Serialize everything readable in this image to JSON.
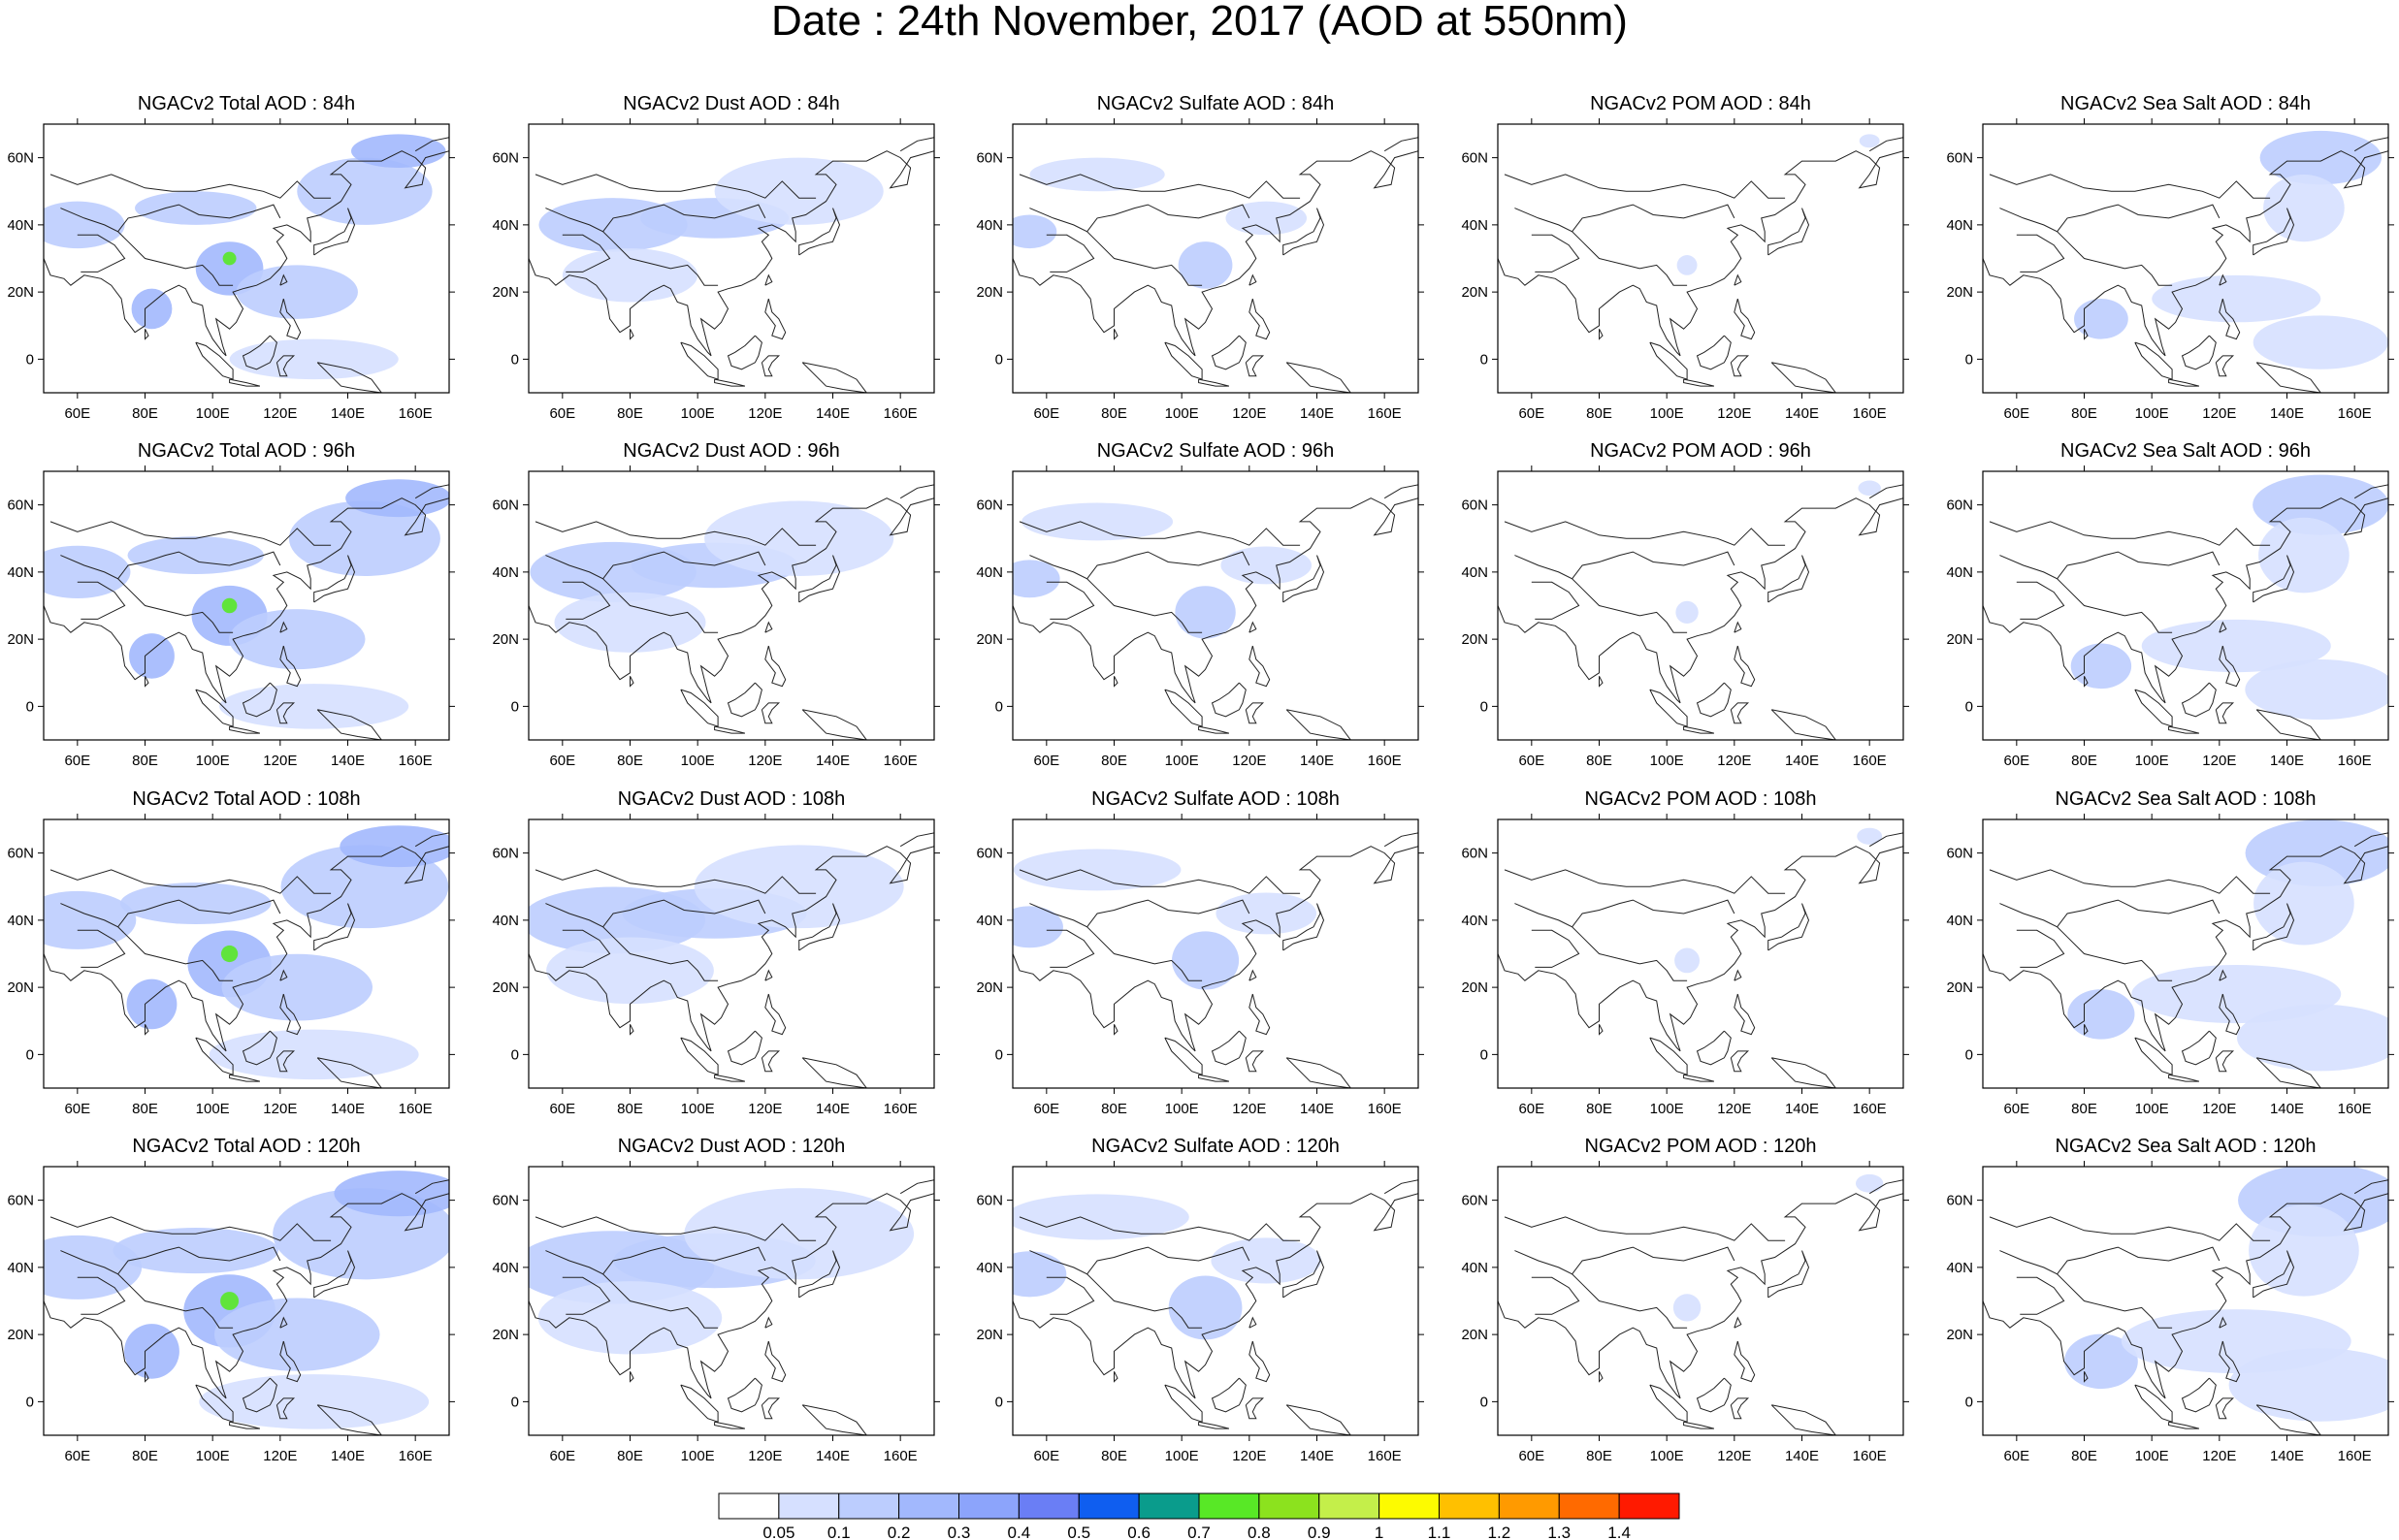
{
  "title": "Date : 24th November, 2017 (AOD at 550nm)",
  "forecast_hours": [
    "84h",
    "96h",
    "108h",
    "120h"
  ],
  "panels": [
    [
      "NGACv2 Total AOD : 84h",
      "NGACv2 Dust AOD : 84h",
      "NGACv2 Sulfate AOD : 84h",
      "NGACv2 POM AOD : 84h",
      "NGACv2 Sea Salt AOD : 84h"
    ],
    [
      "NGACv2 Total AOD : 96h",
      "NGACv2 Dust AOD : 96h",
      "NGACv2 Sulfate AOD : 96h",
      "NGACv2 POM AOD : 96h",
      "NGACv2 Sea Salt AOD : 96h"
    ],
    [
      "NGACv2 Total AOD : 108h",
      "NGACv2 Dust AOD : 108h",
      "NGACv2 Sulfate AOD : 108h",
      "NGACv2 POM AOD : 108h",
      "NGACv2 Sea Salt AOD : 108h"
    ],
    [
      "NGACv2 Total AOD : 120h",
      "NGACv2 Dust AOD : 120h",
      "NGACv2 Sulfate AOD : 120h",
      "NGACv2 POM AOD : 120h",
      "NGACv2 Sea Salt  AOD : 120h"
    ]
  ],
  "map_extent": {
    "lon_min": 50,
    "lon_max": 170,
    "lat_min": -10,
    "lat_max": 70
  },
  "lon_ticks": [
    "60E",
    "80E",
    "100E",
    "120E",
    "140E",
    "160E"
  ],
  "lon_tick_values": [
    60,
    80,
    100,
    120,
    140,
    160
  ],
  "lat_ticks": [
    "60N",
    "40N",
    "20N",
    "0"
  ],
  "lat_tick_values": [
    60,
    40,
    20,
    0
  ],
  "colorbar": {
    "labels": [
      "0.05",
      "0.1",
      "0.2",
      "0.3",
      "0.4",
      "0.5",
      "0.6",
      "0.7",
      "0.8",
      "0.9",
      "1",
      "1.1",
      "1.2",
      "1.3",
      "1.4"
    ],
    "colors": [
      "#ffffff",
      "#d6e0ff",
      "#bccdfe",
      "#a2b8fd",
      "#8ca4fb",
      "#6a7ef5",
      "#0f5ef0",
      "#0a9c8c",
      "#58e826",
      "#8ce21e",
      "#c4ef4a",
      "#fdfb00",
      "#ffc000",
      "#ff9a00",
      "#ff6a00",
      "#ff1a00"
    ]
  },
  "fields": {
    "Total": [
      {
        "lon": 60,
        "lat": 40,
        "rx": 14,
        "ry": 7,
        "level": 2
      },
      {
        "lon": 95,
        "lat": 45,
        "rx": 18,
        "ry": 5,
        "level": 2
      },
      {
        "lon": 145,
        "lat": 50,
        "rx": 20,
        "ry": 10,
        "level": 2
      },
      {
        "lon": 155,
        "lat": 62,
        "rx": 14,
        "ry": 5,
        "level": 3
      },
      {
        "lon": 105,
        "lat": 27,
        "rx": 10,
        "ry": 8,
        "level": 3
      },
      {
        "lon": 82,
        "lat": 15,
        "rx": 6,
        "ry": 6,
        "level": 3
      },
      {
        "lon": 125,
        "lat": 20,
        "rx": 18,
        "ry": 8,
        "level": 2
      },
      {
        "lon": 130,
        "lat": 0,
        "rx": 25,
        "ry": 6,
        "level": 1
      },
      {
        "lon": 105,
        "lat": 30,
        "rx": 2,
        "ry": 2,
        "level": 8
      }
    ],
    "Dust": [
      {
        "lon": 75,
        "lat": 40,
        "rx": 22,
        "ry": 8,
        "level": 2
      },
      {
        "lon": 105,
        "lat": 42,
        "rx": 22,
        "ry": 6,
        "level": 2
      },
      {
        "lon": 130,
        "lat": 50,
        "rx": 25,
        "ry": 10,
        "level": 1
      },
      {
        "lon": 80,
        "lat": 25,
        "rx": 20,
        "ry": 8,
        "level": 1
      }
    ],
    "Sulfate": [
      {
        "lon": 75,
        "lat": 55,
        "rx": 20,
        "ry": 5,
        "level": 1
      },
      {
        "lon": 55,
        "lat": 38,
        "rx": 8,
        "ry": 5,
        "level": 2
      },
      {
        "lon": 107,
        "lat": 28,
        "rx": 8,
        "ry": 7,
        "level": 2
      },
      {
        "lon": 125,
        "lat": 42,
        "rx": 12,
        "ry": 5,
        "level": 1
      }
    ],
    "POM": [
      {
        "lon": 106,
        "lat": 28,
        "rx": 3,
        "ry": 3,
        "level": 1
      },
      {
        "lon": 160,
        "lat": 65,
        "rx": 3,
        "ry": 2,
        "level": 1
      }
    ],
    "Sea Salt": [
      {
        "lon": 150,
        "lat": 60,
        "rx": 18,
        "ry": 8,
        "level": 2
      },
      {
        "lon": 145,
        "lat": 45,
        "rx": 12,
        "ry": 10,
        "level": 1
      },
      {
        "lon": 85,
        "lat": 12,
        "rx": 8,
        "ry": 6,
        "level": 2
      },
      {
        "lon": 125,
        "lat": 18,
        "rx": 25,
        "ry": 7,
        "level": 1
      },
      {
        "lon": 150,
        "lat": 5,
        "rx": 20,
        "ry": 8,
        "level": 1
      }
    ]
  }
}
